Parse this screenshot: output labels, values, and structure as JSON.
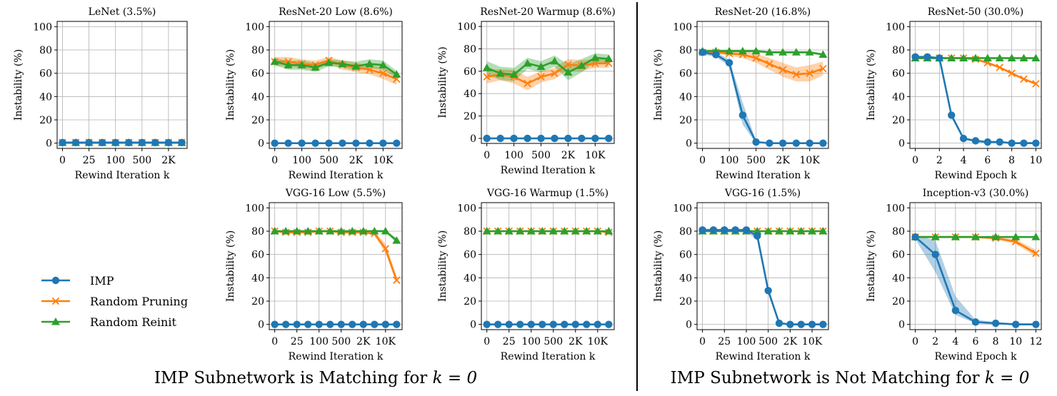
{
  "section_titles": {
    "left": "IMP Subnetwork is Matching for",
    "right": "IMP Subnetwork is Not Matching for",
    "math": "k = 0"
  },
  "legend": [
    {
      "name": "IMP",
      "color": "#1f77b4",
      "marker": "circle"
    },
    {
      "name": "Random Pruning",
      "color": "#ff7f0e",
      "marker": "x"
    },
    {
      "name": "Random Reinit",
      "color": "#2ca02c",
      "marker": "triangle"
    }
  ],
  "chart_data": [
    {
      "type": "line",
      "title": "LeNet (3.5%)",
      "xlabel": "Rewind Iteration k",
      "ylabel": "Instability (%)",
      "xticks": [
        "0",
        "25",
        "100",
        "500",
        "2K"
      ],
      "xtick_positions": [
        0,
        2,
        4,
        6,
        8
      ],
      "x": [
        0,
        1,
        2,
        3,
        4,
        5,
        6,
        7,
        8,
        9
      ],
      "ylim": [
        0,
        100
      ],
      "yticks": [
        0,
        20,
        40,
        60,
        80,
        100
      ],
      "grid": true,
      "series": [
        {
          "name": "IMP",
          "values": [
            0.5,
            0.5,
            0.5,
            0.5,
            0.5,
            0.5,
            0.5,
            0.5,
            0.5,
            0.5
          ]
        },
        {
          "name": "Random Pruning",
          "values": [
            0.6,
            0.6,
            0.6,
            0.6,
            0.6,
            0.6,
            0.6,
            0.6,
            0.6,
            0.6
          ]
        },
        {
          "name": "Random Reinit",
          "values": [
            0.3,
            0.3,
            0.3,
            0.3,
            0.3,
            0.3,
            0.3,
            0.3,
            0.3,
            0.3
          ]
        }
      ]
    },
    {
      "type": "line",
      "title": "ResNet-20 Low (8.6%)",
      "xlabel": "Rewind Iteration k",
      "ylabel": "Instability (%)",
      "xticks": [
        "0",
        "100",
        "500",
        "2K",
        "10K"
      ],
      "xtick_positions": [
        0,
        2,
        4,
        6,
        8
      ],
      "x": [
        0,
        1,
        2,
        3,
        4,
        5,
        6,
        7,
        8,
        9
      ],
      "ylim": [
        0,
        100
      ],
      "yticks": [
        0,
        20,
        40,
        60,
        80,
        100
      ],
      "grid": true,
      "series": [
        {
          "name": "IMP",
          "values": [
            0,
            0,
            0,
            0,
            0,
            0,
            0,
            0,
            0,
            0
          ]
        },
        {
          "name": "Random Pruning",
          "values": [
            70,
            70,
            68,
            67,
            71,
            67,
            65,
            63,
            60,
            55
          ],
          "lower": [
            66,
            66,
            64,
            63,
            68,
            63,
            61,
            59,
            55,
            50
          ],
          "upper": [
            74,
            74,
            72,
            71,
            74,
            71,
            69,
            67,
            65,
            60
          ]
        },
        {
          "name": "Random Reinit",
          "values": [
            70,
            67,
            67,
            65,
            69,
            68,
            66,
            68,
            67,
            59
          ],
          "lower": [
            67,
            63,
            63,
            61,
            66,
            65,
            62,
            64,
            63,
            56
          ],
          "upper": [
            73,
            71,
            71,
            69,
            72,
            71,
            70,
            72,
            71,
            62
          ]
        }
      ]
    },
    {
      "type": "line",
      "title": "ResNet-20 Warmup (8.6%)",
      "xlabel": "Rewind Iteration k",
      "ylabel": "Instability (%)",
      "xticks": [
        "0",
        "100",
        "500",
        "2K",
        "10K"
      ],
      "xtick_positions": [
        0,
        2,
        4,
        6,
        8
      ],
      "x": [
        0,
        1,
        2,
        3,
        4,
        5,
        6,
        7,
        8,
        9
      ],
      "ylim": [
        0,
        100
      ],
      "yticks": [
        0,
        20,
        40,
        60,
        80,
        100
      ],
      "grid": true,
      "series": [
        {
          "name": "IMP",
          "values": [
            0,
            0,
            0,
            0,
            0,
            0,
            0,
            0,
            0,
            0
          ]
        },
        {
          "name": "Random Pruning",
          "values": [
            55,
            57,
            55,
            49,
            55,
            58,
            66,
            65,
            67,
            67
          ],
          "lower": [
            49,
            52,
            49,
            43,
            50,
            53,
            61,
            60,
            63,
            63
          ],
          "upper": [
            61,
            62,
            61,
            55,
            60,
            63,
            71,
            70,
            71,
            71
          ]
        },
        {
          "name": "Random Reinit",
          "values": [
            63,
            58,
            57,
            67,
            64,
            69,
            59,
            65,
            72,
            71
          ],
          "lower": [
            57,
            52,
            51,
            62,
            59,
            64,
            52,
            59,
            68,
            67
          ],
          "upper": [
            69,
            64,
            63,
            72,
            69,
            74,
            66,
            71,
            76,
            75
          ]
        }
      ]
    },
    {
      "type": "line",
      "title": "VGG-16 Low (5.5%)",
      "xlabel": "Rewind Iteration k",
      "ylabel": "Instability (%)",
      "xticks": [
        "0",
        "25",
        "100",
        "500",
        "2K",
        "10K"
      ],
      "xtick_positions": [
        0,
        2,
        4,
        6,
        8,
        10
      ],
      "x": [
        0,
        1,
        2,
        3,
        4,
        5,
        6,
        7,
        8,
        9,
        10,
        11
      ],
      "ylim": [
        0,
        100
      ],
      "yticks": [
        0,
        20,
        40,
        60,
        80,
        100
      ],
      "grid": true,
      "series": [
        {
          "name": "IMP",
          "values": [
            0,
            0,
            0,
            0,
            0,
            0,
            0,
            0,
            0,
            0,
            0,
            0
          ]
        },
        {
          "name": "Random Pruning",
          "values": [
            80,
            79,
            79,
            79,
            80,
            80,
            79,
            79,
            79,
            78,
            65,
            38
          ],
          "lower": [
            79,
            78,
            78,
            78,
            79,
            79,
            78,
            78,
            78,
            76,
            61,
            35
          ],
          "upper": [
            81,
            80,
            80,
            80,
            81,
            81,
            80,
            80,
            80,
            80,
            69,
            41
          ]
        },
        {
          "name": "Random Reinit",
          "values": [
            80,
            80,
            80,
            80,
            80,
            80,
            80,
            80,
            80,
            80,
            80,
            72
          ],
          "lower": [
            79,
            79,
            79,
            79,
            79,
            79,
            79,
            79,
            79,
            79,
            79,
            70
          ],
          "upper": [
            81,
            81,
            81,
            81,
            81,
            81,
            81,
            81,
            81,
            81,
            81,
            74
          ]
        }
      ]
    },
    {
      "type": "line",
      "title": "VGG-16 Warmup (1.5%)",
      "xlabel": "Rewind Iteration k",
      "ylabel": "Instability (%)",
      "xticks": [
        "0",
        "25",
        "100",
        "500",
        "2K",
        "10K"
      ],
      "xtick_positions": [
        0,
        2,
        4,
        6,
        8,
        10
      ],
      "x": [
        0,
        1,
        2,
        3,
        4,
        5,
        6,
        7,
        8,
        9,
        10,
        11
      ],
      "ylim": [
        0,
        100
      ],
      "yticks": [
        0,
        20,
        40,
        60,
        80,
        100
      ],
      "grid": true,
      "series": [
        {
          "name": "IMP",
          "values": [
            0,
            0,
            0,
            0,
            0,
            0,
            0,
            0,
            0,
            0,
            0,
            0
          ]
        },
        {
          "name": "Random Pruning",
          "values": [
            80,
            80,
            80,
            80,
            80,
            80,
            80,
            80,
            80,
            80,
            80,
            79
          ]
        },
        {
          "name": "Random Reinit",
          "values": [
            80,
            80,
            80,
            80,
            80,
            80,
            80,
            80,
            80,
            80,
            80,
            80
          ]
        }
      ]
    },
    {
      "type": "line",
      "title": "ResNet-20 (16.8%)",
      "xlabel": "Rewind Iteration k",
      "ylabel": "Instability (%)",
      "xticks": [
        "0",
        "100",
        "500",
        "2K",
        "10K"
      ],
      "xtick_positions": [
        0,
        2,
        4,
        6,
        8
      ],
      "x": [
        0,
        1,
        2,
        3,
        4,
        5,
        6,
        7,
        8,
        9
      ],
      "ylim": [
        0,
        100
      ],
      "yticks": [
        0,
        20,
        40,
        60,
        80,
        100
      ],
      "grid": true,
      "series": [
        {
          "name": "IMP",
          "values": [
            78,
            76,
            69,
            24,
            1,
            0,
            0,
            0,
            0,
            0
          ],
          "lower": [
            76,
            74,
            66,
            16,
            0,
            0,
            0,
            0,
            0,
            0
          ],
          "upper": [
            80,
            78,
            72,
            35,
            2,
            0,
            0,
            0,
            0,
            0
          ]
        },
        {
          "name": "Random Pruning",
          "values": [
            78,
            78,
            77,
            76,
            73,
            68,
            63,
            59,
            60,
            64
          ],
          "lower": [
            77,
            77,
            75,
            73,
            69,
            63,
            57,
            53,
            53,
            58
          ],
          "upper": [
            79,
            79,
            79,
            79,
            77,
            73,
            69,
            65,
            67,
            70
          ]
        },
        {
          "name": "Random Reinit",
          "values": [
            79,
            79,
            79,
            79,
            79,
            78,
            78,
            78,
            78,
            76
          ],
          "lower": [
            78,
            78,
            78,
            78,
            78,
            77,
            77,
            77,
            77,
            75
          ],
          "upper": [
            80,
            80,
            80,
            80,
            80,
            79,
            79,
            79,
            79,
            77
          ]
        }
      ]
    },
    {
      "type": "line",
      "title": "ResNet-50 (30.0%)",
      "xlabel": "Rewind Epoch k",
      "ylabel": "Instability (%)",
      "xticks": [
        "0",
        "2",
        "4",
        "6",
        "8",
        "10"
      ],
      "xtick_positions": [
        0,
        2,
        4,
        6,
        8,
        10
      ],
      "x": [
        0,
        1,
        2,
        3,
        4,
        5,
        6,
        7,
        8,
        9,
        10
      ],
      "ylim": [
        0,
        100
      ],
      "yticks": [
        0,
        20,
        40,
        60,
        80,
        100
      ],
      "grid": true,
      "series": [
        {
          "name": "IMP",
          "values": [
            74,
            74,
            73,
            24,
            4,
            2,
            1,
            1,
            0,
            0,
            0
          ],
          "lower": [
            73,
            73,
            72,
            22,
            3,
            1,
            0,
            0,
            0,
            0,
            0
          ],
          "upper": [
            75,
            75,
            74,
            26,
            5,
            3,
            2,
            2,
            1,
            1,
            1
          ]
        },
        {
          "name": "Random Pruning",
          "values": [
            73,
            73,
            73,
            73,
            73,
            72,
            69,
            65,
            60,
            55,
            51
          ],
          "lower": [
            72,
            72,
            72,
            72,
            72,
            71,
            68,
            64,
            59,
            54,
            50
          ],
          "upper": [
            74,
            74,
            74,
            74,
            74,
            73,
            70,
            66,
            61,
            56,
            52
          ]
        },
        {
          "name": "Random Reinit",
          "values": [
            73,
            73,
            73,
            73,
            73,
            73,
            73,
            73,
            73,
            73,
            73
          ]
        }
      ]
    },
    {
      "type": "line",
      "title": "VGG-16 (1.5%)",
      "xlabel": "Rewind Iteration k",
      "ylabel": "Instability (%)",
      "xticks": [
        "0",
        "25",
        "100",
        "500",
        "2K",
        "10K"
      ],
      "xtick_positions": [
        0,
        2,
        4,
        6,
        8,
        10
      ],
      "x": [
        0,
        1,
        2,
        3,
        4,
        5,
        6,
        7,
        8,
        9,
        10,
        11
      ],
      "ylim": [
        0,
        100
      ],
      "yticks": [
        0,
        20,
        40,
        60,
        80,
        100
      ],
      "grid": true,
      "series": [
        {
          "name": "IMP",
          "values": [
            81,
            81,
            81,
            81,
            81,
            76,
            29,
            1,
            0,
            0,
            0,
            0
          ],
          "lower": [
            80,
            80,
            80,
            80,
            80,
            72,
            26,
            0,
            0,
            0,
            0,
            0
          ],
          "upper": [
            82,
            82,
            82,
            82,
            82,
            80,
            32,
            2,
            1,
            1,
            1,
            1
          ]
        },
        {
          "name": "Random Pruning",
          "values": [
            80,
            80,
            80,
            80,
            80,
            80,
            80,
            80,
            80,
            80,
            80,
            80
          ]
        },
        {
          "name": "Random Reinit",
          "values": [
            80,
            80,
            80,
            80,
            80,
            80,
            80,
            80,
            80,
            80,
            80,
            80
          ]
        }
      ]
    },
    {
      "type": "line",
      "title": "Inception-v3 (30.0%)",
      "xlabel": "Rewind Epoch k",
      "ylabel": "Instability (%)",
      "xticks": [
        "0",
        "2",
        "4",
        "6",
        "8",
        "10",
        "12"
      ],
      "xtick_positions": [
        0,
        2,
        4,
        6,
        8,
        10,
        12
      ],
      "x": [
        0,
        2,
        4,
        6,
        8,
        10,
        12
      ],
      "ylim": [
        0,
        100
      ],
      "yticks": [
        0,
        20,
        40,
        60,
        80,
        100
      ],
      "grid": true,
      "series": [
        {
          "name": "IMP",
          "values": [
            75,
            60,
            12,
            2,
            1,
            0,
            0
          ],
          "lower": [
            73,
            45,
            8,
            1,
            0,
            0,
            0
          ],
          "upper": [
            77,
            72,
            24,
            4,
            2,
            1,
            1
          ]
        },
        {
          "name": "Random Pruning",
          "values": [
            75,
            75,
            75,
            75,
            74,
            71,
            61
          ],
          "lower": [
            74,
            74,
            74,
            74,
            73,
            69,
            58
          ],
          "upper": [
            76,
            76,
            76,
            76,
            75,
            73,
            64
          ]
        },
        {
          "name": "Random Reinit",
          "values": [
            75,
            75,
            75,
            75,
            75,
            75,
            75
          ]
        }
      ]
    }
  ]
}
